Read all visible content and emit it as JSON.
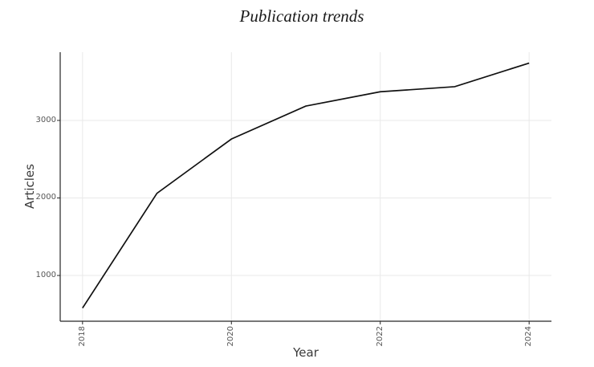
{
  "chart_data": {
    "type": "line",
    "title": "Publication trends",
    "xlabel": "Year",
    "ylabel": "Articles",
    "x": [
      2018,
      2019,
      2020,
      2021,
      2022,
      2023,
      2024
    ],
    "series": [
      {
        "name": "Articles",
        "values": [
          580,
          2060,
          2760,
          3185,
          3370,
          3435,
          3740
        ]
      }
    ],
    "xticks": [
      "2018",
      "2020",
      "2022",
      "2024"
    ],
    "xtick_positions": [
      2018,
      2020,
      2022,
      2024
    ],
    "yticks": [
      "1000",
      "2000",
      "3000"
    ],
    "ytick_positions": [
      1000,
      2000,
      3000
    ],
    "xlim": [
      2017.7,
      2024.3
    ],
    "ylim": [
      410,
      3880
    ],
    "grid": true,
    "legend": false,
    "x_tick_rotation": 90,
    "colors": {
      "line": "#111111",
      "grid": "#e9e9e9",
      "spine": "#262626",
      "tick_label": "#555555",
      "axis_label": "#3a3a3a",
      "title": "#1a1a1a",
      "background": "#ffffff"
    }
  }
}
